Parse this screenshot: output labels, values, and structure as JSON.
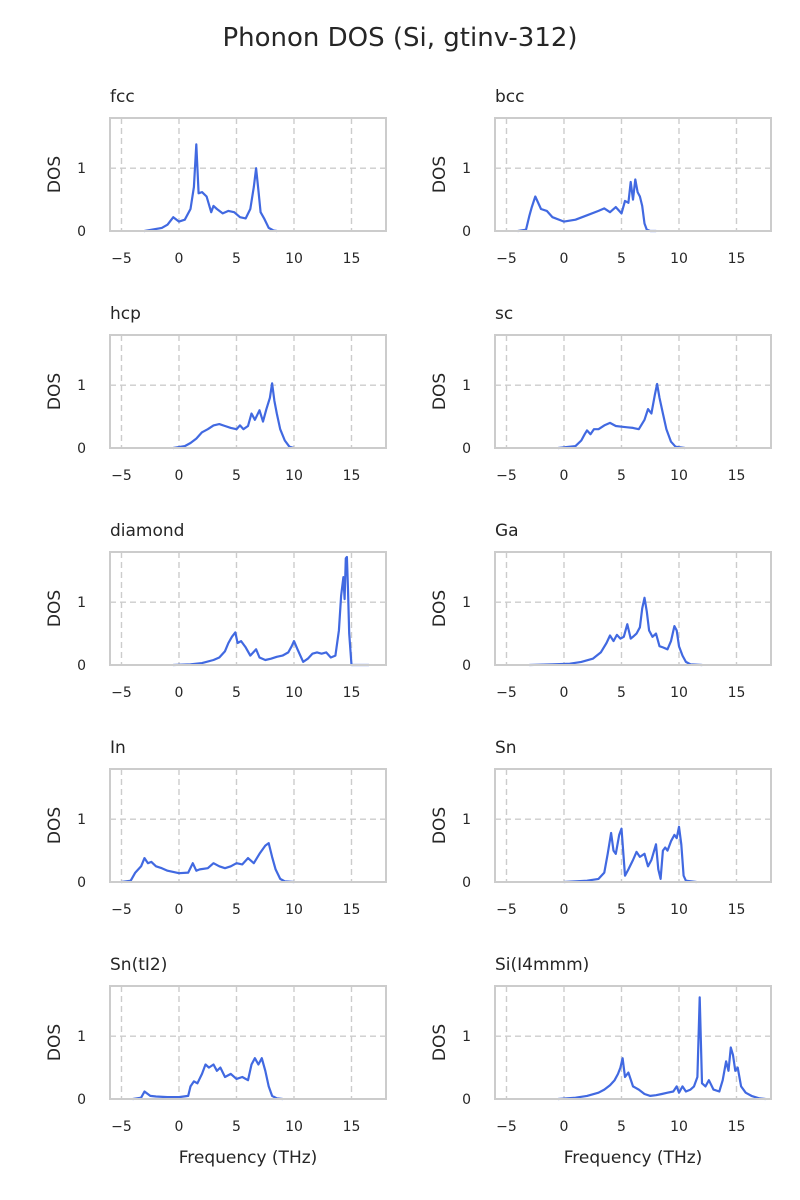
{
  "title": "Phonon DOS (Si, gtinv-312)",
  "colors": {
    "line": "#4169e1",
    "grid": "#cccccc",
    "frame": "#cccccc",
    "text": "#262626"
  },
  "chart_data": [
    {
      "type": "line",
      "title": "fcc",
      "ylabel": "DOS",
      "xlabel": "",
      "xlim": [
        -6,
        18
      ],
      "ylim": [
        0,
        1.8
      ],
      "xticks": [
        -5,
        0,
        5,
        10,
        15
      ],
      "yticks": [
        0,
        1
      ],
      "grid": true,
      "x": [
        -3,
        -1.5,
        -1,
        -0.5,
        0,
        0.5,
        1,
        1.3,
        1.5,
        1.7,
        2,
        2.4,
        2.8,
        3,
        3.3,
        3.8,
        4.3,
        4.8,
        5.3,
        5.8,
        6.2,
        6.5,
        6.7,
        6.9,
        7.1,
        7.4,
        7.8,
        8.2,
        8.5
      ],
      "y": [
        0,
        0.05,
        0.1,
        0.22,
        0.15,
        0.18,
        0.35,
        0.7,
        1.38,
        0.6,
        0.62,
        0.55,
        0.3,
        0.4,
        0.35,
        0.28,
        0.32,
        0.3,
        0.22,
        0.2,
        0.35,
        0.7,
        1.0,
        0.65,
        0.3,
        0.2,
        0.05,
        0.01,
        0
      ]
    },
    {
      "type": "line",
      "title": "bcc",
      "ylabel": "DOS",
      "xlabel": "",
      "xlim": [
        -6,
        18
      ],
      "ylim": [
        0,
        1.8
      ],
      "xticks": [
        -5,
        0,
        5,
        10,
        15
      ],
      "yticks": [
        0,
        1
      ],
      "grid": true,
      "x": [
        -4,
        -3.3,
        -3,
        -2.8,
        -2.5,
        -2,
        -1.5,
        -1,
        0,
        1,
        2,
        3,
        3.5,
        4,
        4.5,
        5,
        5.3,
        5.6,
        5.8,
        6,
        6.2,
        6.4,
        6.6,
        6.8,
        7,
        7.2,
        7.5,
        8
      ],
      "y": [
        0,
        0.02,
        0.25,
        0.38,
        0.55,
        0.35,
        0.32,
        0.22,
        0.15,
        0.18,
        0.25,
        0.32,
        0.36,
        0.3,
        0.38,
        0.28,
        0.48,
        0.45,
        0.78,
        0.5,
        0.82,
        0.62,
        0.55,
        0.4,
        0.12,
        0.02,
        0,
        0
      ]
    },
    {
      "type": "line",
      "title": "hcp",
      "ylabel": "DOS",
      "xlabel": "",
      "xlim": [
        -6,
        18
      ],
      "ylim": [
        0,
        1.8
      ],
      "xticks": [
        -5,
        0,
        5,
        10,
        15
      ],
      "yticks": [
        0,
        1
      ],
      "grid": true,
      "x": [
        -0.5,
        0.5,
        1,
        1.5,
        2,
        2.5,
        3,
        3.5,
        4,
        4.5,
        5,
        5.3,
        5.6,
        6,
        6.3,
        6.6,
        7,
        7.3,
        7.6,
        7.9,
        8.1,
        8.3,
        8.5,
        8.8,
        9.2,
        9.6,
        10
      ],
      "y": [
        0,
        0.03,
        0.08,
        0.15,
        0.25,
        0.3,
        0.36,
        0.38,
        0.35,
        0.32,
        0.3,
        0.36,
        0.3,
        0.35,
        0.55,
        0.45,
        0.6,
        0.42,
        0.62,
        0.8,
        1.03,
        0.75,
        0.55,
        0.3,
        0.12,
        0.02,
        0
      ]
    },
    {
      "type": "line",
      "title": "sc",
      "ylabel": "DOS",
      "xlabel": "",
      "xlim": [
        -6,
        18
      ],
      "ylim": [
        0,
        1.8
      ],
      "xticks": [
        -5,
        0,
        5,
        10,
        15
      ],
      "yticks": [
        0,
        1
      ],
      "grid": true,
      "x": [
        -0.5,
        1,
        1.5,
        1.8,
        2,
        2.3,
        2.6,
        3,
        3.5,
        4,
        4.5,
        5,
        5.5,
        6,
        6.5,
        7,
        7.3,
        7.6,
        7.9,
        8.1,
        8.3,
        8.6,
        8.9,
        9.3,
        9.7,
        10.5
      ],
      "y": [
        0,
        0.03,
        0.12,
        0.22,
        0.28,
        0.22,
        0.3,
        0.3,
        0.36,
        0.4,
        0.35,
        0.34,
        0.33,
        0.32,
        0.3,
        0.45,
        0.62,
        0.55,
        0.85,
        1.02,
        0.8,
        0.55,
        0.3,
        0.1,
        0.02,
        0
      ]
    },
    {
      "type": "line",
      "title": "diamond",
      "ylabel": "DOS",
      "xlabel": "",
      "xlim": [
        -6,
        18
      ],
      "ylim": [
        0,
        1.8
      ],
      "xticks": [
        -5,
        0,
        5,
        10,
        15
      ],
      "yticks": [
        0,
        1
      ],
      "grid": true,
      "x": [
        -0.5,
        1,
        2,
        3,
        3.5,
        4,
        4.3,
        4.6,
        4.9,
        5.1,
        5.4,
        5.8,
        6.2,
        6.7,
        7,
        7.5,
        8,
        8.5,
        9,
        9.5,
        9.8,
        10,
        10.3,
        10.8,
        11.2,
        11.6,
        12,
        12.4,
        12.8,
        13.2,
        13.6,
        13.9,
        14.1,
        14.3,
        14.4,
        14.5,
        14.6,
        14.7,
        14.8,
        15,
        15.5,
        16.5
      ],
      "y": [
        0,
        0.01,
        0.03,
        0.08,
        0.12,
        0.22,
        0.35,
        0.45,
        0.52,
        0.35,
        0.38,
        0.28,
        0.15,
        0.25,
        0.12,
        0.08,
        0.1,
        0.13,
        0.15,
        0.2,
        0.3,
        0.38,
        0.25,
        0.05,
        0.1,
        0.18,
        0.2,
        0.18,
        0.2,
        0.12,
        0.15,
        0.55,
        1.1,
        1.4,
        1.05,
        1.7,
        1.72,
        1.2,
        0.5,
        0,
        0,
        0
      ]
    },
    {
      "type": "line",
      "title": "Ga",
      "ylabel": "DOS",
      "xlabel": "",
      "xlim": [
        -6,
        18
      ],
      "ylim": [
        0,
        1.8
      ],
      "xticks": [
        -5,
        0,
        5,
        10,
        15
      ],
      "yticks": [
        0,
        1
      ],
      "grid": true,
      "x": [
        -3,
        -1,
        0.5,
        1.5,
        2.5,
        3.2,
        3.7,
        4,
        4.3,
        4.6,
        4.9,
        5.2,
        5.5,
        5.8,
        6,
        6.3,
        6.6,
        6.8,
        7,
        7.2,
        7.4,
        7.7,
        8,
        8.3,
        8.6,
        9,
        9.3,
        9.6,
        9.8,
        10,
        10.3,
        10.6,
        11,
        12
      ],
      "y": [
        0,
        0.01,
        0.02,
        0.05,
        0.1,
        0.2,
        0.35,
        0.47,
        0.38,
        0.48,
        0.42,
        0.45,
        0.65,
        0.42,
        0.45,
        0.5,
        0.6,
        0.9,
        1.07,
        0.85,
        0.55,
        0.45,
        0.5,
        0.3,
        0.28,
        0.25,
        0.38,
        0.62,
        0.55,
        0.3,
        0.15,
        0.05,
        0.01,
        0
      ]
    },
    {
      "type": "line",
      "title": "In",
      "ylabel": "DOS",
      "xlabel": "",
      "xlim": [
        -6,
        18
      ],
      "ylim": [
        0,
        1.8
      ],
      "xticks": [
        -5,
        0,
        5,
        10,
        15
      ],
      "yticks": [
        0,
        1
      ],
      "grid": true,
      "x": [
        -5,
        -4.2,
        -3.8,
        -3.3,
        -3,
        -2.7,
        -2.4,
        -2,
        -1.5,
        -1,
        0,
        0.8,
        1.2,
        1.5,
        1.8,
        2.5,
        3,
        3.5,
        4,
        4.5,
        5,
        5.5,
        6,
        6.5,
        7,
        7.5,
        7.8,
        8.1,
        8.4,
        8.8,
        9.2,
        10
      ],
      "y": [
        0,
        0.02,
        0.15,
        0.25,
        0.38,
        0.3,
        0.32,
        0.25,
        0.22,
        0.18,
        0.14,
        0.15,
        0.3,
        0.18,
        0.2,
        0.22,
        0.3,
        0.25,
        0.22,
        0.25,
        0.3,
        0.28,
        0.38,
        0.3,
        0.45,
        0.58,
        0.62,
        0.4,
        0.2,
        0.05,
        0.01,
        0
      ]
    },
    {
      "type": "line",
      "title": "Sn",
      "ylabel": "DOS",
      "xlabel": "",
      "xlim": [
        -6,
        18
      ],
      "ylim": [
        0,
        1.8
      ],
      "xticks": [
        -5,
        0,
        5,
        10,
        15
      ],
      "yticks": [
        0,
        1
      ],
      "grid": true,
      "x": [
        0,
        2,
        3,
        3.5,
        3.8,
        4.1,
        4.3,
        4.5,
        4.8,
        5,
        5.3,
        5.6,
        6,
        6.3,
        6.6,
        7,
        7.3,
        7.6,
        8,
        8.2,
        8.4,
        8.6,
        8.8,
        9,
        9.3,
        9.6,
        9.8,
        10,
        10.2,
        10.4,
        10.6,
        11.5
      ],
      "y": [
        0,
        0.02,
        0.05,
        0.15,
        0.45,
        0.78,
        0.5,
        0.45,
        0.75,
        0.85,
        0.1,
        0.2,
        0.35,
        0.48,
        0.4,
        0.45,
        0.25,
        0.35,
        0.6,
        0.2,
        0.05,
        0.5,
        0.55,
        0.5,
        0.65,
        0.75,
        0.7,
        0.88,
        0.6,
        0.1,
        0.02,
        0
      ]
    },
    {
      "type": "line",
      "title": "Sn(tI2)",
      "ylabel": "DOS",
      "xlabel": "Frequency (THz)",
      "xlim": [
        -6,
        18
      ],
      "ylim": [
        0,
        1.8
      ],
      "xticks": [
        -5,
        0,
        5,
        10,
        15
      ],
      "yticks": [
        0,
        1
      ],
      "grid": true,
      "x": [
        -4,
        -3.3,
        -3,
        -2.5,
        -2,
        -1,
        0,
        0.8,
        1,
        1.3,
        1.6,
        2,
        2.3,
        2.6,
        3,
        3.3,
        3.6,
        4,
        4.5,
        5,
        5.5,
        6,
        6.3,
        6.6,
        6.9,
        7.2,
        7.5,
        7.8,
        8.1,
        8.5,
        9
      ],
      "y": [
        0,
        0.02,
        0.12,
        0.05,
        0.04,
        0.03,
        0.03,
        0.05,
        0.2,
        0.28,
        0.25,
        0.4,
        0.55,
        0.5,
        0.55,
        0.45,
        0.5,
        0.35,
        0.4,
        0.32,
        0.35,
        0.3,
        0.55,
        0.65,
        0.55,
        0.65,
        0.45,
        0.2,
        0.05,
        0.01,
        0
      ]
    },
    {
      "type": "line",
      "title": "Si(I4mmm)",
      "ylabel": "DOS",
      "xlabel": "Frequency (THz)",
      "xlim": [
        -6,
        18
      ],
      "ylim": [
        0,
        1.8
      ],
      "xticks": [
        -5,
        0,
        5,
        10,
        15
      ],
      "yticks": [
        0,
        1
      ],
      "grid": true,
      "x": [
        -0.5,
        1,
        2,
        3,
        3.5,
        4,
        4.4,
        4.7,
        4.9,
        5.1,
        5.3,
        5.6,
        6,
        6.5,
        7,
        7.5,
        8,
        8.5,
        9,
        9.5,
        9.8,
        10,
        10.3,
        10.6,
        11,
        11.3,
        11.6,
        11.8,
        12,
        12.3,
        12.6,
        13,
        13.5,
        13.8,
        14.1,
        14.3,
        14.5,
        14.7,
        14.9,
        15.1,
        15.4,
        15.8,
        16.3,
        17,
        17.5
      ],
      "y": [
        0,
        0.02,
        0.05,
        0.1,
        0.15,
        0.22,
        0.3,
        0.4,
        0.5,
        0.65,
        0.35,
        0.42,
        0.2,
        0.15,
        0.08,
        0.05,
        0.06,
        0.08,
        0.1,
        0.12,
        0.2,
        0.1,
        0.2,
        0.12,
        0.15,
        0.2,
        0.35,
        1.62,
        0.25,
        0.2,
        0.3,
        0.15,
        0.12,
        0.3,
        0.6,
        0.45,
        0.82,
        0.7,
        0.45,
        0.5,
        0.2,
        0.1,
        0.05,
        0.01,
        0
      ]
    }
  ]
}
